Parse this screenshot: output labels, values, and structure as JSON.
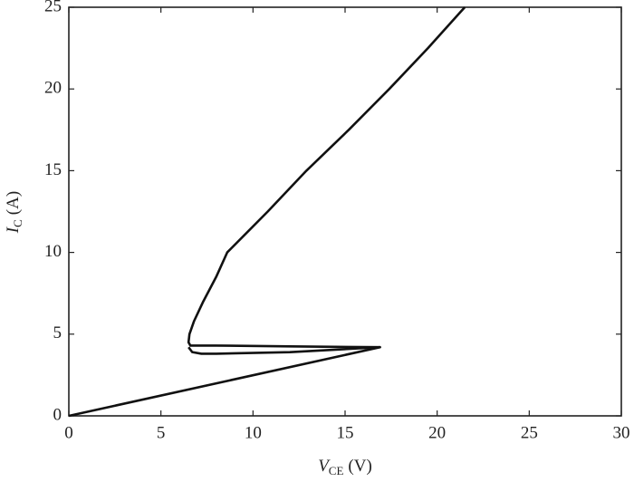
{
  "chart_data": {
    "type": "line",
    "xlabel": {
      "main": "V",
      "sub": "CE",
      "unit": "(V)"
    },
    "ylabel": {
      "main": "I",
      "sub": "C",
      "unit": "(A)"
    },
    "xlim": [
      0,
      30
    ],
    "xticks": [
      0,
      5,
      10,
      15,
      20,
      25,
      30
    ],
    "ylim": [
      0,
      25
    ],
    "yticks": [
      0,
      5,
      10,
      15,
      20,
      25
    ],
    "series": [
      {
        "color": "#111111",
        "x": [
          0,
          16.9,
          12,
          8,
          7,
          6.6,
          6.5,
          6.55,
          6.8,
          7.3,
          8,
          8.6,
          10.8,
          12.9,
          15.2,
          17.4,
          19.5,
          21.5
        ],
        "values": [
          0,
          4.2,
          4.25,
          4.3,
          4.3,
          4.3,
          4.5,
          5,
          5.8,
          7,
          8.5,
          10,
          12.5,
          15,
          17.5,
          20,
          22.5,
          25
        ]
      },
      {
        "color": "#111111",
        "x": [
          16.9,
          12,
          8,
          7.2,
          6.7,
          6.5
        ],
        "values": [
          4.2,
          3.9,
          3.8,
          3.8,
          3.9,
          4.2
        ]
      }
    ]
  }
}
